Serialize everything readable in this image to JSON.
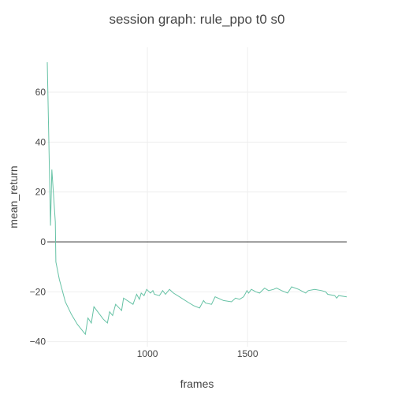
{
  "chart_data": {
    "type": "line",
    "title": "session graph: rule_ppo t0 s0",
    "xlabel": "frames",
    "ylabel": "mean_return",
    "xlim": [
      500,
      1995
    ],
    "ylim": [
      -42,
      78
    ],
    "xticks": [
      1000,
      1500
    ],
    "yticks": [
      -40,
      -20,
      0,
      20,
      40,
      60
    ],
    "grid": true,
    "legend": "none",
    "series": [
      {
        "color": "#66c2a5",
        "points": [
          [
            500,
            72
          ],
          [
            516,
            6.5
          ],
          [
            523,
            29
          ],
          [
            540,
            8
          ],
          [
            543,
            -8
          ],
          [
            560,
            -15
          ],
          [
            590,
            -24
          ],
          [
            620,
            -29
          ],
          [
            650,
            -33
          ],
          [
            690,
            -37
          ],
          [
            703,
            -30.5
          ],
          [
            720,
            -32.5
          ],
          [
            733,
            -26
          ],
          [
            780,
            -31
          ],
          [
            800,
            -32.5
          ],
          [
            811,
            -28
          ],
          [
            826,
            -29.5
          ],
          [
            841,
            -25
          ],
          [
            871,
            -27.5
          ],
          [
            881,
            -22.5
          ],
          [
            928,
            -25
          ],
          [
            946,
            -21
          ],
          [
            960,
            -23
          ],
          [
            969,
            -20.5
          ],
          [
            983,
            -21.5
          ],
          [
            996,
            -19
          ],
          [
            1015,
            -20.5
          ],
          [
            1027,
            -19.5
          ],
          [
            1035,
            -21
          ],
          [
            1060,
            -21.5
          ],
          [
            1076,
            -19.5
          ],
          [
            1090,
            -21
          ],
          [
            1110,
            -19
          ],
          [
            1130,
            -20.5
          ],
          [
            1160,
            -22
          ],
          [
            1199,
            -24
          ],
          [
            1230,
            -25.5
          ],
          [
            1260,
            -26.5
          ],
          [
            1280,
            -23.5
          ],
          [
            1290,
            -24.5
          ],
          [
            1320,
            -25
          ],
          [
            1338,
            -22
          ],
          [
            1380,
            -23.5
          ],
          [
            1420,
            -24
          ],
          [
            1440,
            -22.5
          ],
          [
            1460,
            -23
          ],
          [
            1480,
            -22
          ],
          [
            1497,
            -19.5
          ],
          [
            1505,
            -20.5
          ],
          [
            1519,
            -19
          ],
          [
            1541,
            -20
          ],
          [
            1560,
            -20.5
          ],
          [
            1585,
            -18.5
          ],
          [
            1605,
            -19.5
          ],
          [
            1630,
            -19
          ],
          [
            1645,
            -18.5
          ],
          [
            1670,
            -19.5
          ],
          [
            1700,
            -20.5
          ],
          [
            1720,
            -18
          ],
          [
            1755,
            -19
          ],
          [
            1790,
            -20.5
          ],
          [
            1803,
            -19.5
          ],
          [
            1835,
            -19
          ],
          [
            1870,
            -19.5
          ],
          [
            1890,
            -20
          ],
          [
            1900,
            -21
          ],
          [
            1935,
            -21.5
          ],
          [
            1945,
            -22.5
          ],
          [
            1955,
            -21.5
          ],
          [
            1995,
            -22
          ]
        ]
      }
    ]
  }
}
